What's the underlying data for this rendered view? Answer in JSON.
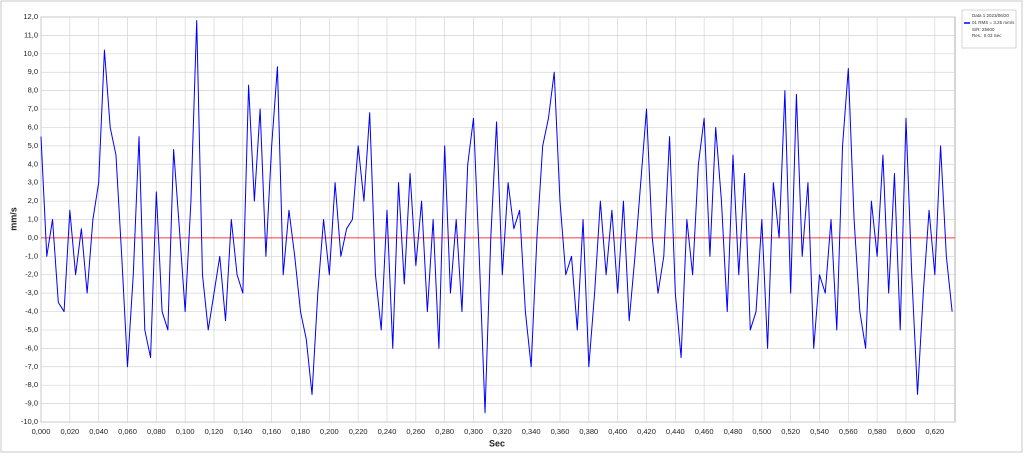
{
  "chart_data": {
    "type": "line",
    "ylabel": "mm/s",
    "xlabel": "Sec",
    "legend_title": "Data 1 2023/06/20",
    "legend_notes": [
      "S/R: 25600",
      "Res.: 0.03 Sec"
    ],
    "legend_position": "top-right",
    "grid": true,
    "reference_line": {
      "value": 0,
      "color": "#ff0000"
    },
    "xlim": [
      0,
      0.634
    ],
    "ylim": [
      -10,
      12
    ],
    "xticks": [
      {
        "value": 0,
        "label": "0,000"
      },
      {
        "value": 0.02,
        "label": "0,020"
      },
      {
        "value": 0.04,
        "label": "0,040"
      },
      {
        "value": 0.06,
        "label": "0,060"
      },
      {
        "value": 0.08,
        "label": "0,080"
      },
      {
        "value": 0.1,
        "label": "0,100"
      },
      {
        "value": 0.12,
        "label": "0,120"
      },
      {
        "value": 0.14,
        "label": "0,140"
      },
      {
        "value": 0.16,
        "label": "0,160"
      },
      {
        "value": 0.18,
        "label": "0,180"
      },
      {
        "value": 0.2,
        "label": "0,200"
      },
      {
        "value": 0.22,
        "label": "0,220"
      },
      {
        "value": 0.24,
        "label": "0,240"
      },
      {
        "value": 0.26,
        "label": "0,260"
      },
      {
        "value": 0.28,
        "label": "0,280"
      },
      {
        "value": 0.3,
        "label": "0,300"
      },
      {
        "value": 0.32,
        "label": "0,320"
      },
      {
        "value": 0.34,
        "label": "0,340"
      },
      {
        "value": 0.36,
        "label": "0,360"
      },
      {
        "value": 0.38,
        "label": "0,380"
      },
      {
        "value": 0.4,
        "label": "0,400"
      },
      {
        "value": 0.42,
        "label": "0,420"
      },
      {
        "value": 0.44,
        "label": "0,440"
      },
      {
        "value": 0.46,
        "label": "0,460"
      },
      {
        "value": 0.48,
        "label": "0,480"
      },
      {
        "value": 0.5,
        "label": "0,500"
      },
      {
        "value": 0.52,
        "label": "0,520"
      },
      {
        "value": 0.54,
        "label": "0,540"
      },
      {
        "value": 0.56,
        "label": "0,560"
      },
      {
        "value": 0.58,
        "label": "0,580"
      },
      {
        "value": 0.6,
        "label": "0,600"
      },
      {
        "value": 0.62,
        "label": "0,620"
      }
    ],
    "yticks": [
      {
        "value": 12,
        "label": "12,0"
      },
      {
        "value": 11,
        "label": "11,0"
      },
      {
        "value": 10,
        "label": "10,0"
      },
      {
        "value": 9,
        "label": "9,0"
      },
      {
        "value": 8,
        "label": "8,0"
      },
      {
        "value": 7,
        "label": "7,0"
      },
      {
        "value": 6,
        "label": "6,0"
      },
      {
        "value": 5,
        "label": "5,0"
      },
      {
        "value": 4,
        "label": "4,0"
      },
      {
        "value": 3,
        "label": "3,0"
      },
      {
        "value": 2,
        "label": "2,0"
      },
      {
        "value": 1,
        "label": "1,0"
      },
      {
        "value": 0,
        "label": "0,0"
      },
      {
        "value": -1,
        "label": "-1,0"
      },
      {
        "value": -2,
        "label": "-2,0"
      },
      {
        "value": -3,
        "label": "-3,0"
      },
      {
        "value": -4,
        "label": "-4,0"
      },
      {
        "value": -5,
        "label": "-5,0"
      },
      {
        "value": -6,
        "label": "-6,0"
      },
      {
        "value": -7,
        "label": "-7,0"
      },
      {
        "value": -8,
        "label": "-8,0"
      },
      {
        "value": -9,
        "label": "-9,0"
      },
      {
        "value": -10,
        "label": "-10,0"
      }
    ],
    "x": [
      0,
      0.004,
      0.008,
      0.012,
      0.016,
      0.02,
      0.024,
      0.028,
      0.032,
      0.036,
      0.04,
      0.044,
      0.048,
      0.052,
      0.056,
      0.06,
      0.064,
      0.068,
      0.072,
      0.076,
      0.08,
      0.084,
      0.088,
      0.092,
      0.096,
      0.1,
      0.104,
      0.108,
      0.112,
      0.116,
      0.12,
      0.124,
      0.128,
      0.132,
      0.136,
      0.14,
      0.144,
      0.148,
      0.152,
      0.156,
      0.16,
      0.164,
      0.168,
      0.172,
      0.176,
      0.18,
      0.184,
      0.188,
      0.192,
      0.196,
      0.2,
      0.204,
      0.208,
      0.212,
      0.216,
      0.22,
      0.224,
      0.228,
      0.232,
      0.236,
      0.24,
      0.244,
      0.248,
      0.252,
      0.256,
      0.26,
      0.264,
      0.268,
      0.272,
      0.276,
      0.28,
      0.284,
      0.288,
      0.292,
      0.296,
      0.3,
      0.304,
      0.308,
      0.312,
      0.316,
      0.32,
      0.324,
      0.328,
      0.332,
      0.336,
      0.34,
      0.344,
      0.348,
      0.352,
      0.356,
      0.36,
      0.364,
      0.368,
      0.372,
      0.376,
      0.38,
      0.384,
      0.388,
      0.392,
      0.396,
      0.4,
      0.404,
      0.408,
      0.412,
      0.416,
      0.42,
      0.424,
      0.428,
      0.432,
      0.436,
      0.44,
      0.444,
      0.448,
      0.452,
      0.456,
      0.46,
      0.464,
      0.468,
      0.472,
      0.476,
      0.48,
      0.484,
      0.488,
      0.492,
      0.496,
      0.5,
      0.504,
      0.508,
      0.512,
      0.516,
      0.52,
      0.524,
      0.528,
      0.532,
      0.536,
      0.54,
      0.544,
      0.548,
      0.552,
      0.556,
      0.56,
      0.564,
      0.568,
      0.572,
      0.576,
      0.58,
      0.584,
      0.588,
      0.592,
      0.596,
      0.6,
      0.604,
      0.608,
      0.612,
      0.616,
      0.62,
      0.624,
      0.628,
      0.632
    ],
    "series": [
      {
        "name": "01 RMS = 3.25 mm/s",
        "color": "#0000ff",
        "values": [
          5.5,
          -1,
          1,
          -3.5,
          -4,
          1.5,
          -2,
          0.5,
          -3,
          1,
          3,
          10.2,
          6,
          4.5,
          -1,
          -7,
          -2,
          5.5,
          -5,
          -6.5,
          2.5,
          -4,
          -5,
          4.8,
          0.5,
          -4,
          2,
          11.8,
          -2,
          -5,
          -3,
          -1,
          -4.5,
          1,
          -2,
          -3,
          8.3,
          2,
          7,
          -1,
          5,
          9.3,
          -2,
          1.5,
          -1,
          -4,
          -5.5,
          -8.5,
          -3,
          1,
          -2,
          3,
          -1,
          0.5,
          1,
          5,
          2,
          6.8,
          -2,
          -5,
          1.5,
          -6,
          3,
          -2.5,
          3.5,
          -1.5,
          2,
          -4,
          1,
          -6,
          5,
          -3,
          1,
          -4,
          4,
          6.5,
          -1,
          -9.5,
          0,
          6.3,
          -2,
          3,
          0.5,
          1.5,
          -4,
          -7,
          0,
          5,
          6.5,
          9,
          2,
          -2,
          -1,
          -5,
          1,
          -7,
          -3,
          2,
          -2,
          1.5,
          -3,
          2,
          -4.5,
          -1,
          3,
          7,
          0,
          -3,
          -1,
          5.5,
          -3,
          -6.5,
          1,
          -2,
          4,
          6.5,
          -1,
          6,
          2,
          -4,
          4.5,
          -2,
          3.5,
          -5,
          -4,
          1,
          -6,
          3,
          0,
          8,
          -3,
          7.8,
          -1,
          3,
          -6,
          -2,
          -3,
          1,
          -5,
          5,
          9.2,
          1,
          -4,
          -6,
          2,
          -1,
          4.5,
          -3,
          3.5,
          -5,
          6.5,
          -2,
          -8.5,
          -3,
          1.5,
          -2,
          5,
          -1,
          -4
        ]
      }
    ]
  }
}
